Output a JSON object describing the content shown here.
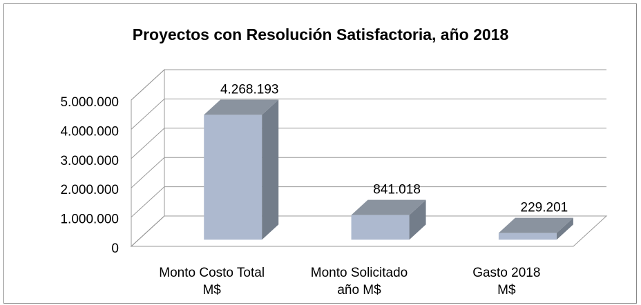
{
  "chart_data": {
    "type": "bar3d",
    "title": "Proyectos con Resolución Satisfactoria, año 2018",
    "categories": [
      [
        "Monto Costo Total",
        "M$"
      ],
      [
        "Monto Solicitado",
        "año M$"
      ],
      [
        "Gasto 2018",
        "M$"
      ]
    ],
    "values": [
      4268193,
      841018,
      229201
    ],
    "value_labels": [
      "4.268.193",
      "841.018",
      "229.201"
    ],
    "color": "#adb9cf",
    "ylim": [
      0,
      5000000
    ],
    "yticks": [
      0,
      {
        "value": 1000000,
        "label": "1.000.000"
      },
      {
        "value": 2000000,
        "label": "2.000.000"
      },
      {
        "value": 3000000,
        "label": "3.000.000"
      },
      {
        "value": 4000000,
        "label": "4.000.000"
      },
      {
        "value": 5000000,
        "label": "5.000.000"
      }
    ],
    "grid": true
  }
}
